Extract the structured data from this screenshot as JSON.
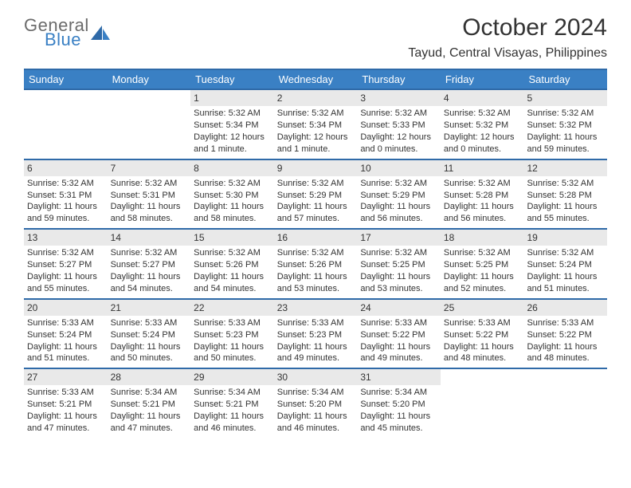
{
  "logo": {
    "general": "General",
    "blue": "Blue"
  },
  "title": {
    "month": "October 2024",
    "location": "Tayud, Central Visayas, Philippines"
  },
  "colors": {
    "header_bg": "#3a80c4",
    "header_border": "#2f6aa8",
    "daynum_bg": "#e9e9e9",
    "text": "#333333",
    "logo_gray": "#6b6b6b",
    "logo_blue": "#3a80c4",
    "background": "#ffffff"
  },
  "dayheads": [
    "Sunday",
    "Monday",
    "Tuesday",
    "Wednesday",
    "Thursday",
    "Friday",
    "Saturday"
  ],
  "weeks": [
    [
      null,
      null,
      {
        "num": "1",
        "sunrise": "Sunrise: 5:32 AM",
        "sunset": "Sunset: 5:34 PM",
        "daylight": "Daylight: 12 hours and 1 minute."
      },
      {
        "num": "2",
        "sunrise": "Sunrise: 5:32 AM",
        "sunset": "Sunset: 5:34 PM",
        "daylight": "Daylight: 12 hours and 1 minute."
      },
      {
        "num": "3",
        "sunrise": "Sunrise: 5:32 AM",
        "sunset": "Sunset: 5:33 PM",
        "daylight": "Daylight: 12 hours and 0 minutes."
      },
      {
        "num": "4",
        "sunrise": "Sunrise: 5:32 AM",
        "sunset": "Sunset: 5:32 PM",
        "daylight": "Daylight: 12 hours and 0 minutes."
      },
      {
        "num": "5",
        "sunrise": "Sunrise: 5:32 AM",
        "sunset": "Sunset: 5:32 PM",
        "daylight": "Daylight: 11 hours and 59 minutes."
      }
    ],
    [
      {
        "num": "6",
        "sunrise": "Sunrise: 5:32 AM",
        "sunset": "Sunset: 5:31 PM",
        "daylight": "Daylight: 11 hours and 59 minutes."
      },
      {
        "num": "7",
        "sunrise": "Sunrise: 5:32 AM",
        "sunset": "Sunset: 5:31 PM",
        "daylight": "Daylight: 11 hours and 58 minutes."
      },
      {
        "num": "8",
        "sunrise": "Sunrise: 5:32 AM",
        "sunset": "Sunset: 5:30 PM",
        "daylight": "Daylight: 11 hours and 58 minutes."
      },
      {
        "num": "9",
        "sunrise": "Sunrise: 5:32 AM",
        "sunset": "Sunset: 5:29 PM",
        "daylight": "Daylight: 11 hours and 57 minutes."
      },
      {
        "num": "10",
        "sunrise": "Sunrise: 5:32 AM",
        "sunset": "Sunset: 5:29 PM",
        "daylight": "Daylight: 11 hours and 56 minutes."
      },
      {
        "num": "11",
        "sunrise": "Sunrise: 5:32 AM",
        "sunset": "Sunset: 5:28 PM",
        "daylight": "Daylight: 11 hours and 56 minutes."
      },
      {
        "num": "12",
        "sunrise": "Sunrise: 5:32 AM",
        "sunset": "Sunset: 5:28 PM",
        "daylight": "Daylight: 11 hours and 55 minutes."
      }
    ],
    [
      {
        "num": "13",
        "sunrise": "Sunrise: 5:32 AM",
        "sunset": "Sunset: 5:27 PM",
        "daylight": "Daylight: 11 hours and 55 minutes."
      },
      {
        "num": "14",
        "sunrise": "Sunrise: 5:32 AM",
        "sunset": "Sunset: 5:27 PM",
        "daylight": "Daylight: 11 hours and 54 minutes."
      },
      {
        "num": "15",
        "sunrise": "Sunrise: 5:32 AM",
        "sunset": "Sunset: 5:26 PM",
        "daylight": "Daylight: 11 hours and 54 minutes."
      },
      {
        "num": "16",
        "sunrise": "Sunrise: 5:32 AM",
        "sunset": "Sunset: 5:26 PM",
        "daylight": "Daylight: 11 hours and 53 minutes."
      },
      {
        "num": "17",
        "sunrise": "Sunrise: 5:32 AM",
        "sunset": "Sunset: 5:25 PM",
        "daylight": "Daylight: 11 hours and 53 minutes."
      },
      {
        "num": "18",
        "sunrise": "Sunrise: 5:32 AM",
        "sunset": "Sunset: 5:25 PM",
        "daylight": "Daylight: 11 hours and 52 minutes."
      },
      {
        "num": "19",
        "sunrise": "Sunrise: 5:32 AM",
        "sunset": "Sunset: 5:24 PM",
        "daylight": "Daylight: 11 hours and 51 minutes."
      }
    ],
    [
      {
        "num": "20",
        "sunrise": "Sunrise: 5:33 AM",
        "sunset": "Sunset: 5:24 PM",
        "daylight": "Daylight: 11 hours and 51 minutes."
      },
      {
        "num": "21",
        "sunrise": "Sunrise: 5:33 AM",
        "sunset": "Sunset: 5:24 PM",
        "daylight": "Daylight: 11 hours and 50 minutes."
      },
      {
        "num": "22",
        "sunrise": "Sunrise: 5:33 AM",
        "sunset": "Sunset: 5:23 PM",
        "daylight": "Daylight: 11 hours and 50 minutes."
      },
      {
        "num": "23",
        "sunrise": "Sunrise: 5:33 AM",
        "sunset": "Sunset: 5:23 PM",
        "daylight": "Daylight: 11 hours and 49 minutes."
      },
      {
        "num": "24",
        "sunrise": "Sunrise: 5:33 AM",
        "sunset": "Sunset: 5:22 PM",
        "daylight": "Daylight: 11 hours and 49 minutes."
      },
      {
        "num": "25",
        "sunrise": "Sunrise: 5:33 AM",
        "sunset": "Sunset: 5:22 PM",
        "daylight": "Daylight: 11 hours and 48 minutes."
      },
      {
        "num": "26",
        "sunrise": "Sunrise: 5:33 AM",
        "sunset": "Sunset: 5:22 PM",
        "daylight": "Daylight: 11 hours and 48 minutes."
      }
    ],
    [
      {
        "num": "27",
        "sunrise": "Sunrise: 5:33 AM",
        "sunset": "Sunset: 5:21 PM",
        "daylight": "Daylight: 11 hours and 47 minutes."
      },
      {
        "num": "28",
        "sunrise": "Sunrise: 5:34 AM",
        "sunset": "Sunset: 5:21 PM",
        "daylight": "Daylight: 11 hours and 47 minutes."
      },
      {
        "num": "29",
        "sunrise": "Sunrise: 5:34 AM",
        "sunset": "Sunset: 5:21 PM",
        "daylight": "Daylight: 11 hours and 46 minutes."
      },
      {
        "num": "30",
        "sunrise": "Sunrise: 5:34 AM",
        "sunset": "Sunset: 5:20 PM",
        "daylight": "Daylight: 11 hours and 46 minutes."
      },
      {
        "num": "31",
        "sunrise": "Sunrise: 5:34 AM",
        "sunset": "Sunset: 5:20 PM",
        "daylight": "Daylight: 11 hours and 45 minutes."
      },
      null,
      null
    ]
  ]
}
